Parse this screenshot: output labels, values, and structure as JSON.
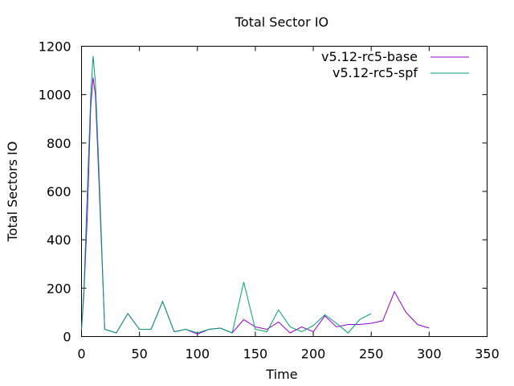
{
  "chart_data": {
    "type": "line",
    "title": "Total Sector IO",
    "xlabel": "Time",
    "ylabel": "Total Sectors IO",
    "xlim": [
      0,
      350
    ],
    "ylim": [
      0,
      1200
    ],
    "xticks": [
      0,
      50,
      100,
      150,
      200,
      250,
      300,
      350
    ],
    "yticks": [
      0,
      200,
      400,
      600,
      800,
      1000,
      1200
    ],
    "grid": false,
    "legend_position": "top-right",
    "series": [
      {
        "name": "v5.12-rc5-base",
        "color": "#9400d3",
        "x": [
          0,
          2,
          5,
          8,
          10,
          12,
          15,
          20,
          30,
          40,
          50,
          60,
          70,
          80,
          90,
          100,
          110,
          120,
          130,
          140,
          150,
          160,
          170,
          180,
          190,
          200,
          210,
          220,
          230,
          240,
          250,
          260,
          270,
          280,
          290,
          300
        ],
        "y": [
          30,
          170,
          500,
          950,
          1070,
          1000,
          650,
          30,
          15,
          95,
          30,
          30,
          145,
          20,
          30,
          10,
          30,
          35,
          15,
          70,
          40,
          30,
          60,
          15,
          40,
          20,
          85,
          40,
          50,
          50,
          55,
          65,
          185,
          100,
          50,
          35
        ]
      },
      {
        "name": "v5.12-rc5-spf",
        "color": "#009e73",
        "x": [
          0,
          2,
          5,
          8,
          10,
          12,
          15,
          20,
          30,
          40,
          50,
          60,
          70,
          80,
          90,
          100,
          110,
          120,
          130,
          140,
          150,
          160,
          170,
          180,
          190,
          200,
          210,
          220,
          230,
          240,
          250
        ],
        "y": [
          30,
          190,
          600,
          1000,
          1160,
          1050,
          700,
          30,
          15,
          95,
          30,
          30,
          145,
          20,
          30,
          15,
          30,
          35,
          15,
          225,
          30,
          20,
          110,
          40,
          20,
          45,
          90,
          55,
          15,
          70,
          95
        ]
      }
    ]
  }
}
